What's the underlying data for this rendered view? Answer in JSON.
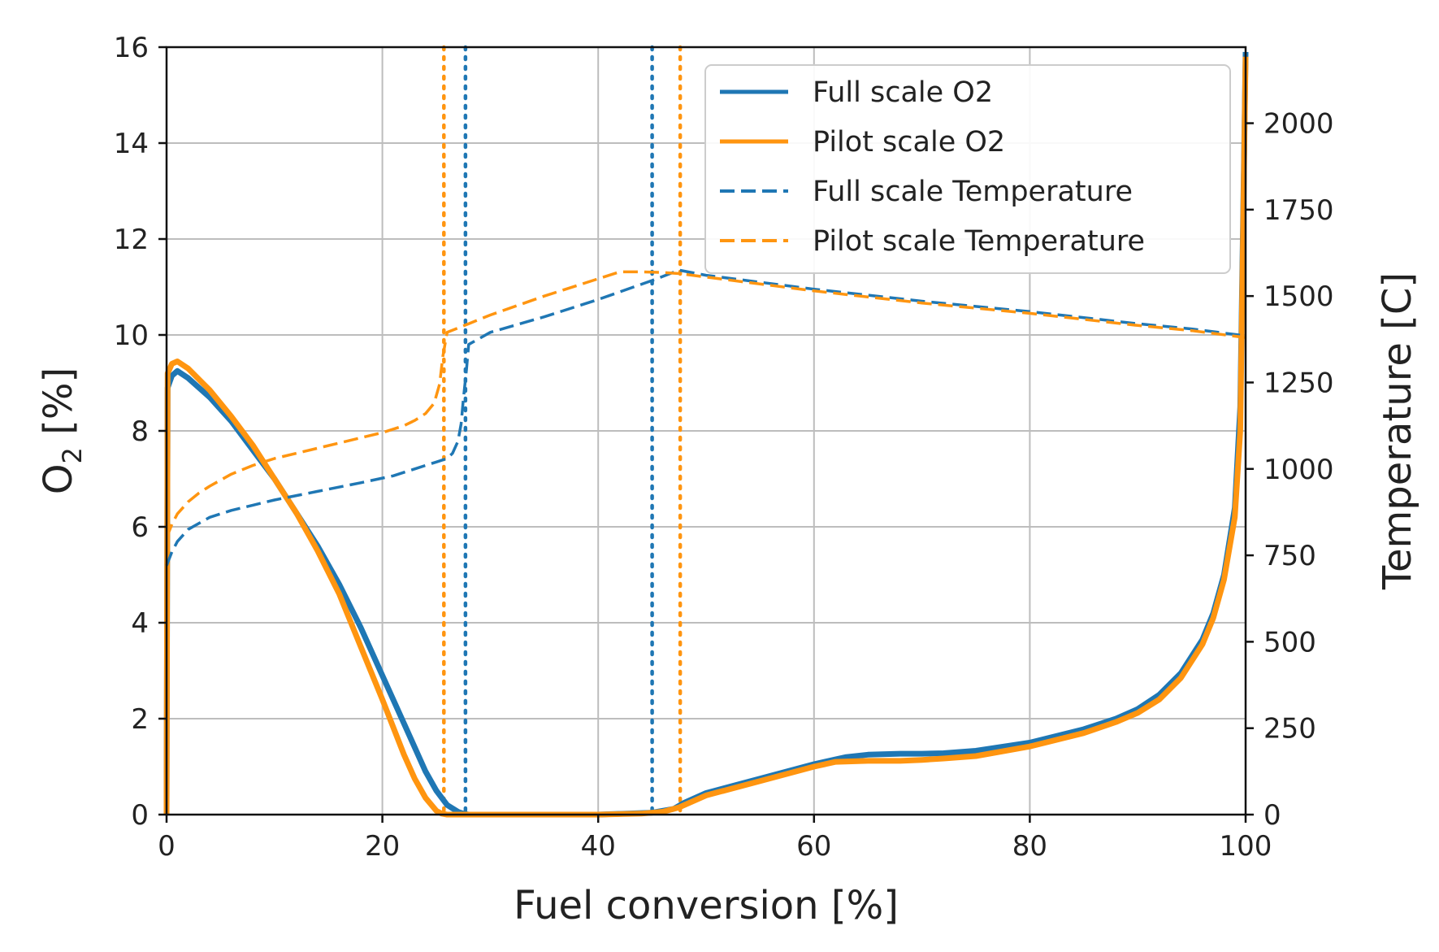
{
  "chart_data": {
    "type": "line",
    "xlabel": "Fuel conversion [%]",
    "ylabel": "O",
    "ylabel_subscript": "2",
    "ylabel_suffix": " [%]",
    "y2label": "Temperature [C]",
    "xlim": [
      0,
      100
    ],
    "ylim": [
      0,
      16
    ],
    "y2lim": [
      0,
      2220
    ],
    "grid": true,
    "legend_position": "top-right",
    "x_ticks": [
      0,
      20,
      40,
      60,
      80,
      100
    ],
    "y_ticks": [
      0,
      2,
      4,
      6,
      8,
      10,
      12,
      14,
      16
    ],
    "y2_ticks": [
      0,
      250,
      500,
      750,
      1000,
      1250,
      1500,
      1750,
      2000
    ],
    "series": [
      {
        "name": "Full scale O2",
        "axis": "left",
        "style": "solid",
        "color": "#1f77b4",
        "x": [
          0,
          0.1,
          0.5,
          1,
          2,
          4,
          6,
          8,
          10,
          12,
          14,
          16,
          18,
          20,
          22,
          24,
          25,
          26,
          27,
          27.5,
          28,
          30,
          35,
          40,
          45,
          47,
          48,
          50,
          55,
          60,
          62,
          63,
          65,
          68,
          70,
          72,
          75,
          80,
          85,
          88,
          90,
          92,
          94,
          96,
          97,
          98,
          99,
          99.5,
          100
        ],
        "y": [
          0,
          8.9,
          9.15,
          9.25,
          9.1,
          8.7,
          8.2,
          7.6,
          7.0,
          6.3,
          5.6,
          4.8,
          3.9,
          2.9,
          1.9,
          0.9,
          0.5,
          0.2,
          0.06,
          0.02,
          0.0,
          0.0,
          0.0,
          0.0,
          0.04,
          0.12,
          0.25,
          0.45,
          0.75,
          1.05,
          1.15,
          1.2,
          1.25,
          1.27,
          1.27,
          1.28,
          1.33,
          1.5,
          1.78,
          2.0,
          2.2,
          2.5,
          2.95,
          3.65,
          4.2,
          5.0,
          6.4,
          8.5,
          15.9
        ]
      },
      {
        "name": "Pilot scale O2",
        "axis": "left",
        "style": "solid",
        "color": "#ff9510",
        "x": [
          0,
          0.1,
          0.5,
          1,
          2,
          4,
          6,
          8,
          10,
          12,
          14,
          16,
          18,
          20,
          22,
          23,
          24,
          25,
          25.5,
          26,
          27,
          30,
          35,
          40,
          44,
          46,
          47.5,
          50,
          55,
          60,
          62,
          65,
          68,
          70,
          72,
          75,
          80,
          85,
          88,
          90,
          92,
          94,
          96,
          97,
          98,
          99,
          99.5,
          100
        ],
        "y": [
          0,
          9.2,
          9.4,
          9.45,
          9.3,
          8.85,
          8.3,
          7.7,
          7.0,
          6.3,
          5.5,
          4.6,
          3.5,
          2.4,
          1.25,
          0.75,
          0.35,
          0.08,
          0.02,
          0.0,
          0.0,
          0.0,
          0.0,
          0.0,
          0.02,
          0.06,
          0.15,
          0.4,
          0.7,
          1.0,
          1.1,
          1.12,
          1.12,
          1.14,
          1.17,
          1.22,
          1.42,
          1.7,
          1.93,
          2.12,
          2.4,
          2.85,
          3.55,
          4.1,
          4.9,
          6.2,
          8.0,
          15.8
        ]
      },
      {
        "name": "Full scale Temperature",
        "axis": "right",
        "style": "dashed",
        "color": "#1f77b4",
        "x": [
          0,
          0.5,
          1,
          2,
          4,
          6,
          8,
          10,
          14,
          18,
          21,
          23,
          24,
          25,
          26,
          26.5,
          27,
          27.3,
          27.5,
          27.8,
          28,
          30,
          35,
          40,
          45,
          47.5,
          50,
          60,
          70,
          80,
          90,
          95,
          100
        ],
        "y": [
          720,
          760,
          790,
          825,
          860,
          880,
          895,
          910,
          935,
          960,
          980,
          1000,
          1010,
          1020,
          1030,
          1045,
          1080,
          1130,
          1200,
          1290,
          1360,
          1395,
          1440,
          1490,
          1545,
          1575,
          1560,
          1520,
          1485,
          1455,
          1420,
          1405,
          1385
        ]
      },
      {
        "name": "Pilot scale Temperature",
        "axis": "right",
        "style": "dashed",
        "color": "#ff9510",
        "x": [
          0,
          0.5,
          1,
          2,
          3,
          4,
          6,
          8,
          10,
          14,
          18,
          20,
          22,
          23,
          24,
          24.8,
          25.3,
          25.6,
          26,
          28,
          30,
          35,
          40,
          42,
          44,
          46,
          47.5,
          50,
          60,
          70,
          80,
          90,
          95,
          100
        ],
        "y": [
          800,
          840,
          870,
          905,
          930,
          950,
          985,
          1010,
          1030,
          1060,
          1090,
          1105,
          1125,
          1140,
          1160,
          1190,
          1245,
          1325,
          1395,
          1420,
          1445,
          1500,
          1550,
          1570,
          1570,
          1568,
          1565,
          1555,
          1515,
          1480,
          1450,
          1415,
          1400,
          1380
        ]
      }
    ],
    "vertical_markers": [
      {
        "x": 25.7,
        "color": "#ff9510",
        "style": "dotted"
      },
      {
        "x": 27.7,
        "color": "#1f77b4",
        "style": "dotted"
      },
      {
        "x": 45.0,
        "color": "#1f77b4",
        "style": "dotted"
      },
      {
        "x": 47.6,
        "color": "#ff9510",
        "style": "dotted"
      }
    ]
  }
}
